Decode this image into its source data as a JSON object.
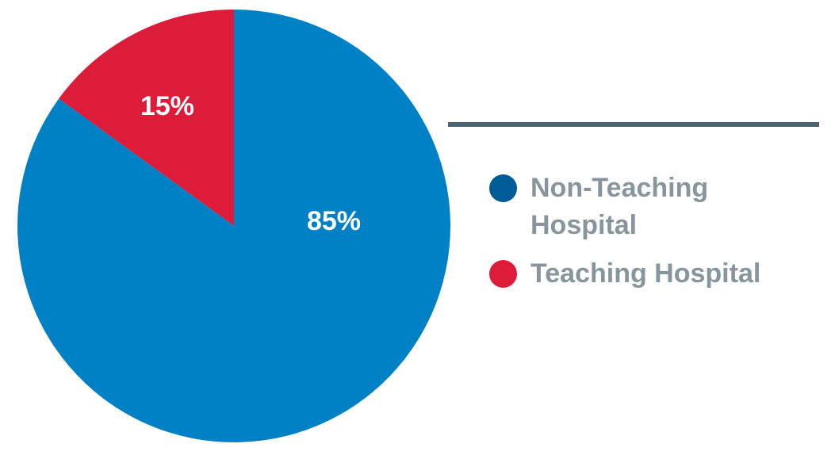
{
  "chart_data": {
    "type": "pie",
    "title": "",
    "slices": [
      {
        "label": "Teaching Hospital",
        "value": 15,
        "value_label": "15%",
        "color": "#dc1c39"
      },
      {
        "label": "Non-Teaching Hospital",
        "value": 85,
        "value_label": "85%",
        "color": "#0081c6"
      }
    ],
    "start_angle": "12 o'clock",
    "direction": "counterclockwise",
    "legend": {
      "placement": "right",
      "items": [
        {
          "label": "Non-Teaching Hospital",
          "color": "#005c97"
        },
        {
          "label": "Teaching Hospital",
          "color": "#dc1c39"
        }
      ]
    }
  }
}
